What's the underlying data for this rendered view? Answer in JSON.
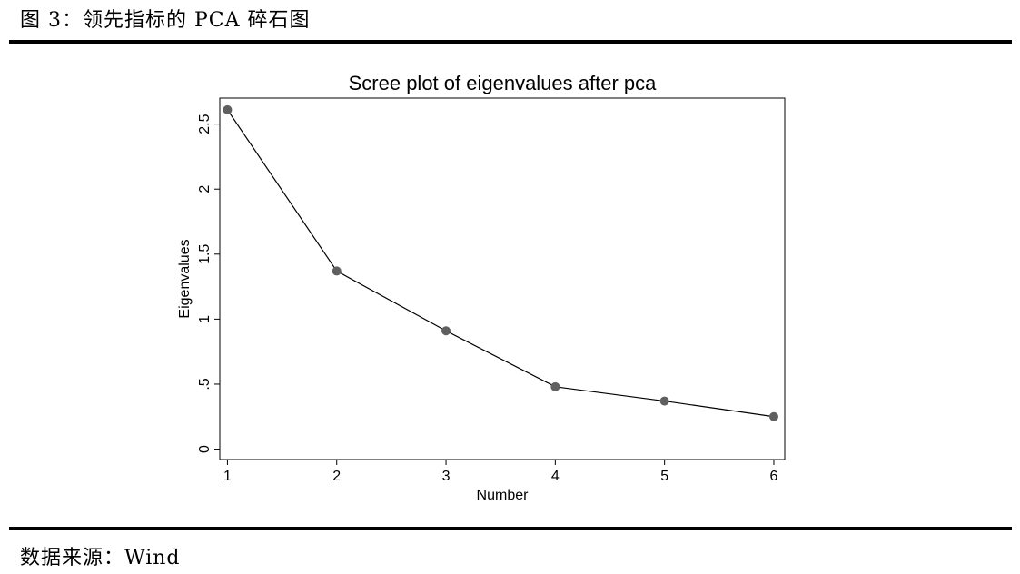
{
  "figure": {
    "title": "图 3：领先指标的 PCA 碎石图",
    "source": "数据来源：Wind"
  },
  "chart_data": {
    "type": "line",
    "title": "Scree plot of eigenvalues after pca",
    "xlabel": "Number",
    "ylabel": "Eigenvalues",
    "x": [
      1,
      2,
      3,
      4,
      5,
      6
    ],
    "values": [
      2.61,
      1.37,
      0.91,
      0.48,
      0.37,
      0.25
    ],
    "x_ticks": [
      "1",
      "2",
      "3",
      "4",
      "5",
      "6"
    ],
    "y_tick_values": [
      0,
      0.5,
      1,
      1.5,
      2,
      2.5
    ],
    "y_ticks": [
      "0",
      ".5",
      "1",
      "1.5",
      "2",
      "2.5"
    ],
    "xlim": [
      0.93,
      6.1
    ],
    "ylim": [
      -0.08,
      2.7
    ],
    "grid": false,
    "line_color": "#000000",
    "marker_color": "#606060"
  }
}
